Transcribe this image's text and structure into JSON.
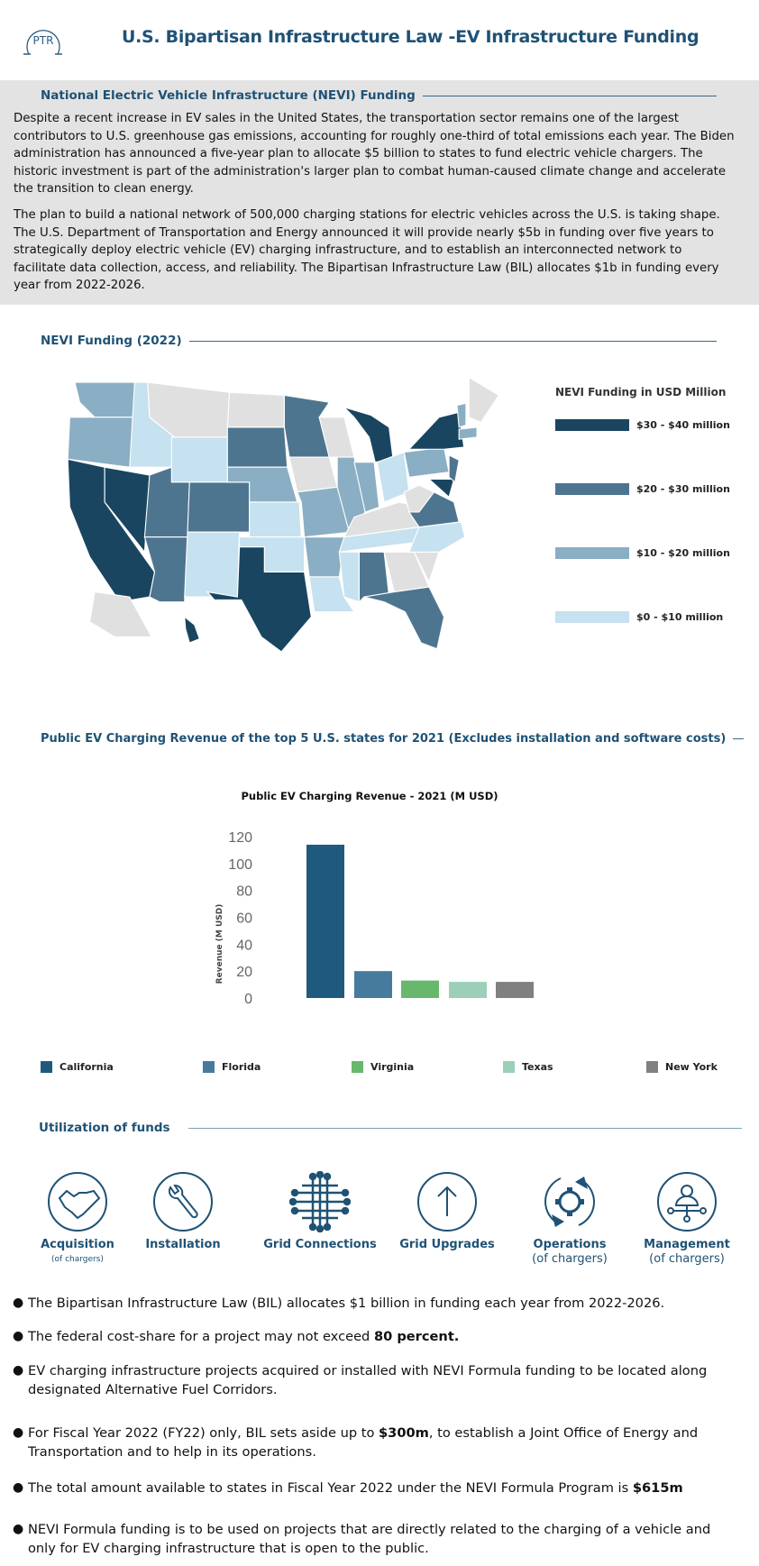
{
  "header": {
    "logo_text": "PTR",
    "title": "U.S. Bipartisan Infrastructure Law -EV Infrastructure Funding"
  },
  "intro": {
    "heading": "National Electric Vehicle Infrastructure (NEVI) Funding",
    "paragraphs": [
      "Despite a recent increase in EV sales in the United States, the transportation sector remains one of the largest contributors to U.S. greenhouse gas emissions, accounting for roughly one-third of total emissions each year. The Biden administration has announced a five-year plan to allocate $5 billion to states to fund electric vehicle chargers. The historic investment is part of the administration's larger plan to combat human-caused climate change and accelerate the transition to clean energy.",
      "The plan to build a national network of 500,000 charging stations for electric vehicles across the U.S. is taking shape. The U.S. Department of Transportation and Energy announced it will provide nearly $5b in funding over five years to strategically deploy electric vehicle (EV) charging infrastructure, and to establish an interconnected network to facilitate data collection, access, and reliability. The Bipartisan Infrastructure Law (BIL) allocates $1b in funding every year from 2022-2026."
    ]
  },
  "map": {
    "heading": "NEVI Funding (2022)",
    "legend_title": "NEVI Funding in USD Million",
    "tiers": [
      {
        "label": "$30 - $40 million",
        "color": "#1a4560"
      },
      {
        "label": "$20 - $30 million",
        "color": "#4e7590"
      },
      {
        "label": "$10 - $20 million",
        "color": "#8aaec3"
      },
      {
        "label": "$0 - $10 million",
        "color": "#c6e1ef"
      }
    ],
    "no_data_color": "#e0e0e0",
    "state_tier": {
      "CA": 0,
      "NV": 0,
      "TX": 0,
      "MI": 0,
      "NY": 0,
      "MD": 0,
      "HI": 0,
      "AZ": 1,
      "UT": 1,
      "CO": 1,
      "SD": 1,
      "MN": 1,
      "VA": 1,
      "AL": 1,
      "FL": 1,
      "NJ": 1,
      "WA": 2,
      "OR": 2,
      "NE": 2,
      "MO": 2,
      "AR": 2,
      "IL": 2,
      "IN": 2,
      "PA": 2,
      "MA": 2,
      "VT": 2,
      "ID": 3,
      "WY": 3,
      "NM": 3,
      "KS": 3,
      "OK": 3,
      "OH": 3,
      "NC": 3,
      "LA": 3,
      "MS": 3,
      "TN": 3,
      "MT": null,
      "ND": null,
      "WI": null,
      "IA": null,
      "KY": null,
      "WV": null,
      "GA": null,
      "SC": null,
      "ME": null,
      "AK": null
    }
  },
  "revenue": {
    "heading": "Public EV Charging Revenue of the top 5 U.S. states for 2021 (Excludes installation and software costs)"
  },
  "chart_data": {
    "type": "bar",
    "title": "Public EV Charging Revenue - 2021 (M USD)",
    "xlabel": "",
    "ylabel": "Revenue (M USD)",
    "ylim": [
      0,
      120
    ],
    "yticks": [
      0,
      20,
      40,
      60,
      80,
      100,
      120
    ],
    "grid": false,
    "legend": "bottom",
    "categories": [
      "California",
      "Florida",
      "Virginia",
      "Texas",
      "New York"
    ],
    "values": [
      114,
      20,
      13,
      12,
      12
    ],
    "colors": [
      "#1f5a7e",
      "#467b9e",
      "#67b86d",
      "#9bcfb8",
      "#808080"
    ]
  },
  "utilization": {
    "heading": "Utilization of funds",
    "items": [
      {
        "icon": "handshake-icon",
        "label": "Acquisition",
        "sub": "(of chargers)"
      },
      {
        "icon": "wrench-icon",
        "label": "Installation",
        "sub": ""
      },
      {
        "icon": "grid-connections-icon",
        "label": "Grid Connections",
        "sub": ""
      },
      {
        "icon": "arrow-up-icon",
        "label": "Grid Upgrades",
        "sub": ""
      },
      {
        "icon": "gear-cycle-icon",
        "label": "Operations",
        "sub": "(of chargers)"
      },
      {
        "icon": "user-network-icon",
        "label": "Management",
        "sub": "(of chargers)"
      }
    ]
  },
  "bullets": [
    {
      "pre": "The Bipartisan Infrastructure Law (BIL) allocates $1 billion in funding each year from 2022-2026.",
      "bold": "",
      "post": ""
    },
    {
      "pre": "The federal cost-share for a project may not exceed ",
      "bold": "80 percent.",
      "post": ""
    },
    {
      "pre": "EV charging infrastructure projects acquired or installed with NEVI Formula funding to be located along designated Alternative Fuel Corridors.",
      "bold": "",
      "post": ""
    },
    {
      "pre": "For Fiscal Year 2022 (FY22) only, BIL sets aside up to ",
      "bold": "$300m",
      "post": ", to establish a Joint Office of Energy and Transportation and to help in its operations."
    },
    {
      "pre": "The total amount available to states in Fiscal Year 2022 under the NEVI Formula Program is ",
      "bold": "$615m",
      "post": ""
    },
    {
      "pre": "NEVI Formula funding is to be used on projects that are directly related to the charging of a vehicle and only for EV charging infrastructure that is open to the public.",
      "bold": "",
      "post": ""
    }
  ]
}
